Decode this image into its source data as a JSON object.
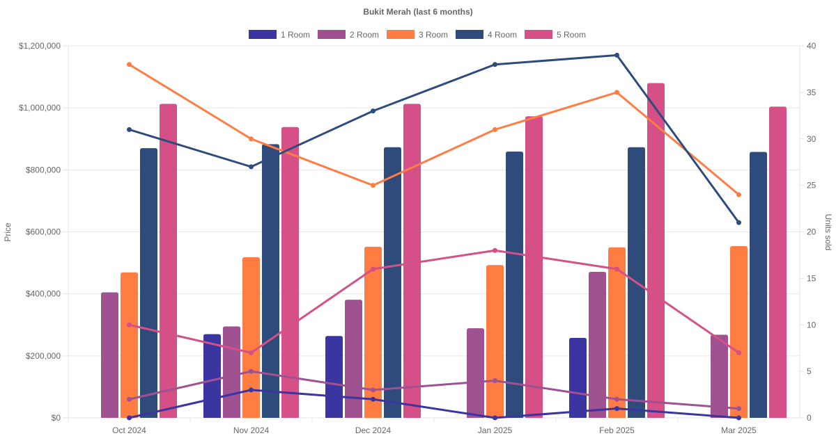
{
  "chart_data": {
    "type": "bar",
    "title": "Bukit Merah (last 6 months)",
    "categories": [
      "Oct 2024",
      "Nov 2024",
      "Dec 2024",
      "Jan 2025",
      "Feb 2025",
      "Mar 2025"
    ],
    "ylabel": "Price",
    "y2label": "Units sold",
    "ylim": [
      0,
      1200000
    ],
    "y2lim": [
      0,
      40
    ],
    "yticks": [
      "$0",
      "$200,000",
      "$400,000",
      "$600,000",
      "$800,000",
      "$1,000,000",
      "$1,200,000"
    ],
    "y2ticks": [
      "0",
      "5",
      "10",
      "15",
      "20",
      "25",
      "30",
      "35",
      "40"
    ],
    "grid": true,
    "legend_position": "top",
    "series": [
      {
        "name": "1 Room",
        "color": "#3a35a0",
        "price": [
          null,
          270000,
          264000,
          null,
          258000,
          null
        ],
        "units": [
          0,
          3,
          2,
          0,
          1,
          0
        ]
      },
      {
        "name": "2 Room",
        "color": "#a05191",
        "price": [
          405000,
          295000,
          381000,
          289000,
          471000,
          268000
        ],
        "units": [
          2,
          5,
          3,
          4,
          2,
          1
        ]
      },
      {
        "name": "3 Room",
        "color": "#ff7c43",
        "price": [
          469000,
          518000,
          552000,
          493000,
          550000,
          554000
        ],
        "units": [
          38,
          30,
          25,
          31,
          35,
          24
        ]
      },
      {
        "name": "4 Room",
        "color": "#2f4b7c",
        "price": [
          870000,
          883000,
          873000,
          859000,
          873000,
          858000
        ],
        "units": [
          31,
          27,
          33,
          38,
          39,
          21
        ]
      },
      {
        "name": "5 Room",
        "color": "#d45087",
        "price": [
          1013000,
          938000,
          1013000,
          973000,
          1080000,
          1004000
        ],
        "units": [
          10,
          7,
          16,
          18,
          16,
          7
        ]
      }
    ]
  }
}
